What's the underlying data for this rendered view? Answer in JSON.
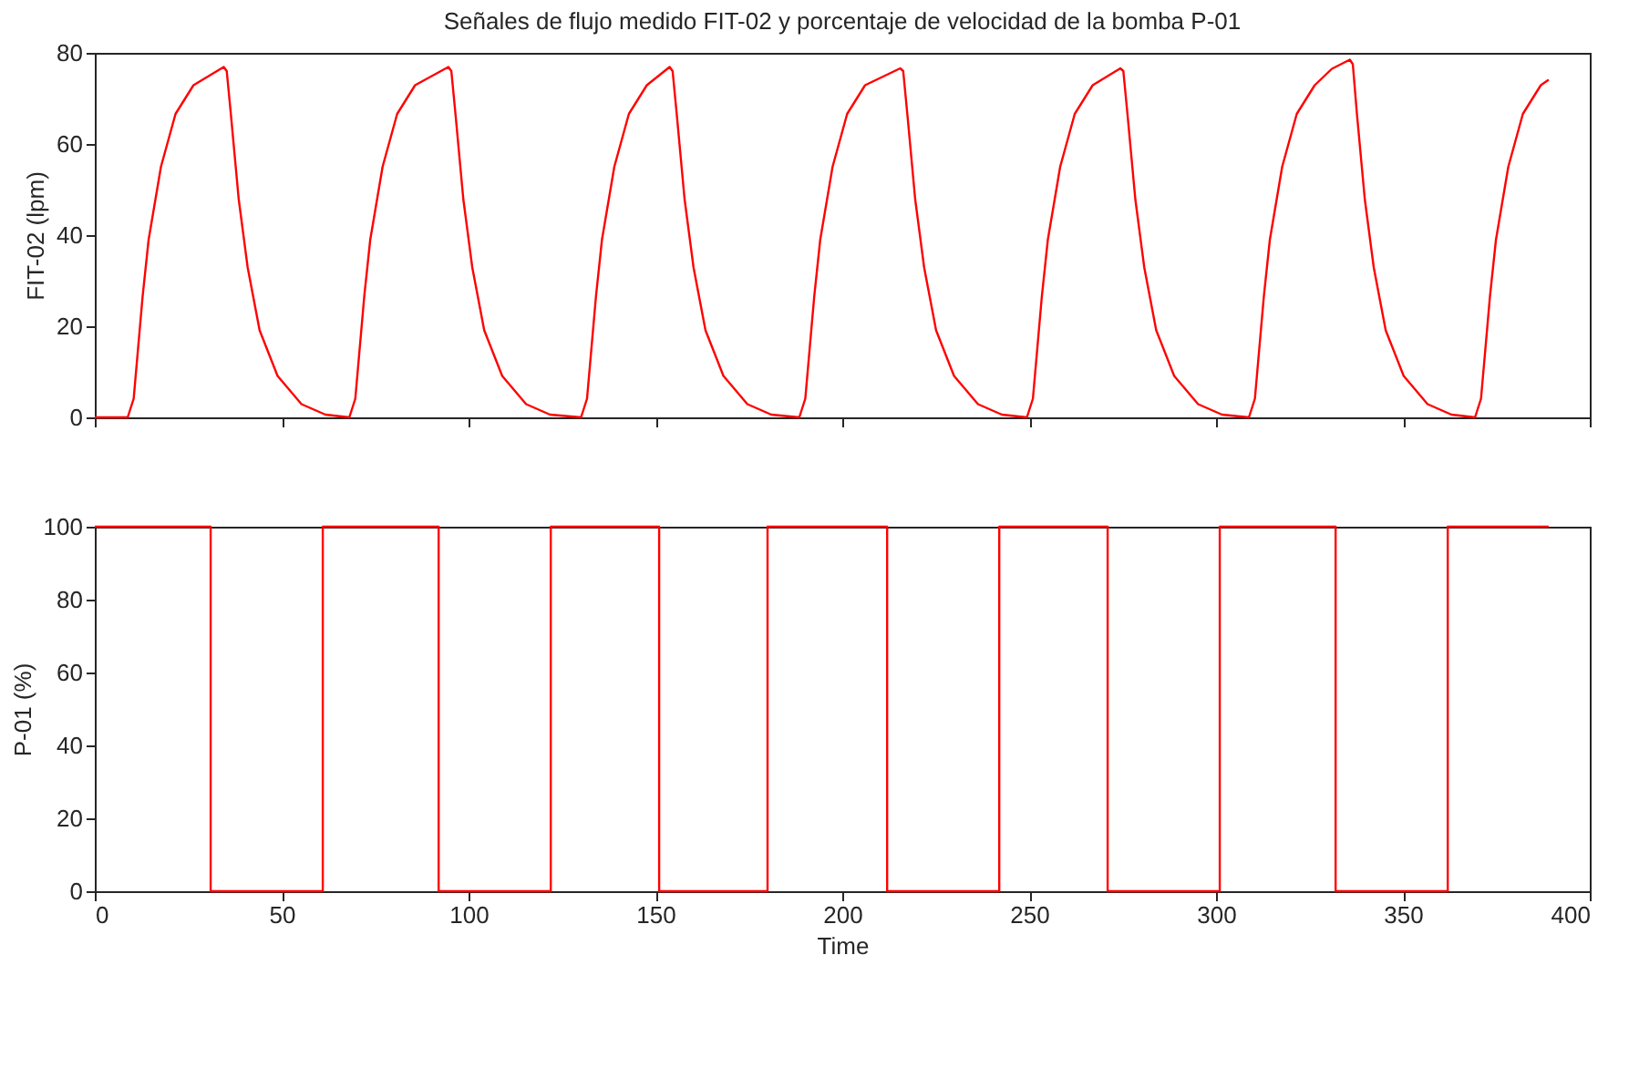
{
  "chart_data": [
    {
      "type": "line",
      "title": "Señales de flujo medido FIT-02 y porcentaje de velocidad de la bomba P-01",
      "ylabel": "FIT-02 (lpm)",
      "x": [
        0,
        8.8,
        10.4,
        12.8,
        14.4,
        17.7,
        21.6,
        26.4,
        34.5,
        35.3,
        36.4,
        38.5,
        40.9,
        44.1,
        48.9,
        55.3,
        61.7,
        68.1,
        69.7,
        72.1,
        73.7,
        77,
        80.9,
        85.7,
        94.6,
        95.4,
        96.5,
        98.6,
        101,
        104.2,
        109,
        115.4,
        121.8,
        130.1,
        131.7,
        134.1,
        135.7,
        139,
        142.9,
        147.7,
        153.8,
        154.6,
        155.7,
        157.8,
        160.2,
        163.4,
        168.2,
        174.6,
        181,
        188.5,
        190.1,
        192.5,
        194.1,
        197.4,
        201.3,
        206.1,
        215.5,
        216.3,
        217.4,
        219.5,
        221.9,
        225.1,
        229.9,
        236.3,
        242.7,
        249.4,
        251,
        253.4,
        255,
        258.3,
        262.2,
        267,
        274.4,
        275.2,
        276.3,
        278.4,
        280.8,
        284,
        288.8,
        295.2,
        301.6,
        308.8,
        310.4,
        312.8,
        314.4,
        317.7,
        321.6,
        326.4,
        331,
        335.8,
        336.6,
        337.7,
        339.8,
        342.2,
        345.4,
        350.2,
        356.6,
        363,
        369.3,
        370.9,
        373.3,
        374.9,
        378.2,
        382.1,
        386.9,
        389
      ],
      "series": [
        {
          "color": "#ff0000",
          "values": [
            0,
            0,
            4.1,
            26.6,
            39,
            55,
            66.6,
            72.9,
            76.9,
            76,
            66.6,
            47.9,
            32.9,
            19.1,
            9.1,
            2.9,
            0.6,
            0,
            4.1,
            26.6,
            39,
            55,
            66.6,
            72.9,
            76.9,
            76,
            66.6,
            47.9,
            32.9,
            19.1,
            9.1,
            2.9,
            0.6,
            0,
            4.1,
            26.6,
            39,
            55,
            66.6,
            72.9,
            76.9,
            76,
            66.6,
            47.9,
            32.9,
            19.1,
            9.1,
            2.9,
            0.6,
            0,
            4.1,
            26.6,
            39,
            55,
            66.6,
            72.9,
            76.6,
            76,
            66.6,
            47.9,
            32.9,
            19.1,
            9.1,
            2.9,
            0.6,
            0,
            4.1,
            26.6,
            39,
            55,
            66.6,
            72.9,
            76.6,
            76,
            66.6,
            47.9,
            32.9,
            19.1,
            9.1,
            2.9,
            0.6,
            0,
            4.1,
            26.6,
            39,
            55,
            66.6,
            72.9,
            76.5,
            78.5,
            77.5,
            66.6,
            47.9,
            32.9,
            19.1,
            9.1,
            2.9,
            0.6,
            0,
            4.1,
            26.6,
            39,
            55,
            66.6,
            72.9,
            74.1
          ]
        }
      ],
      "xlim": [
        0,
        400
      ],
      "xticks": [
        0,
        50,
        100,
        150,
        200,
        250,
        300,
        350,
        400
      ],
      "ylim": [
        0,
        80
      ],
      "yticks": [
        0,
        20,
        40,
        60,
        80
      ],
      "tick_labels": "y"
    },
    {
      "type": "step",
      "xlabel": "Time",
      "ylabel": "P-01 (%)",
      "x": [
        0,
        31,
        61,
        92,
        122,
        151,
        180,
        212,
        242,
        271,
        301,
        332,
        362,
        389
      ],
      "series": [
        {
          "color": "#ff0000",
          "values": [
            100,
            0,
            100,
            0,
            100,
            0,
            100,
            0,
            100,
            0,
            100,
            0,
            100,
            100
          ]
        }
      ],
      "xlim": [
        0,
        400
      ],
      "xticks": [
        0,
        50,
        100,
        150,
        200,
        250,
        300,
        350,
        400
      ],
      "ylim": [
        0,
        100
      ],
      "yticks": [
        0,
        20,
        40,
        60,
        80,
        100
      ]
    }
  ]
}
